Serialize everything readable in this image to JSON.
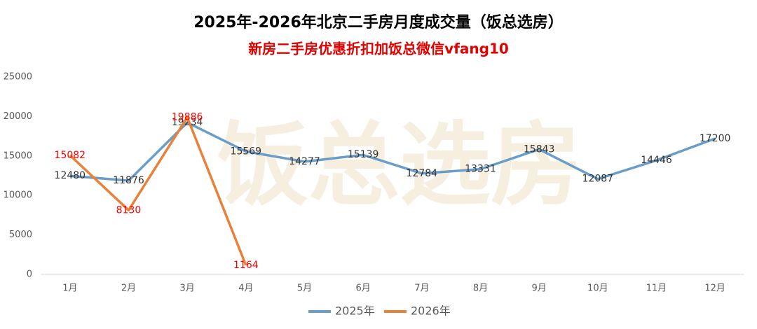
{
  "chart_data": {
    "type": "line",
    "title": "2025年-2026年北京二手房月度成交量（饭总选房）",
    "subtitle": "新房二手房优惠折扣加饭总微信vfang10",
    "watermark": "饭总选房",
    "categories": [
      "1月",
      "2月",
      "3月",
      "4月",
      "5月",
      "6月",
      "7月",
      "8月",
      "9月",
      "10月",
      "11月",
      "12月"
    ],
    "series": [
      {
        "name": "2025年",
        "color": "#6a9dc8",
        "label_color": "#333333",
        "values": [
          12480,
          11876,
          19234,
          15569,
          14277,
          15139,
          12784,
          13331,
          15843,
          12087,
          14446,
          17200
        ]
      },
      {
        "name": "2026年",
        "color": "#e8813a",
        "label_color": "#ff0000",
        "values": [
          15082,
          8130,
          19886,
          1164,
          null,
          null,
          null,
          null,
          null,
          null,
          null,
          null
        ]
      }
    ],
    "ylim": [
      0,
      25000
    ],
    "yticks": [
      0,
      5000,
      10000,
      15000,
      20000,
      25000
    ],
    "grid": false,
    "legend": "bottom"
  }
}
